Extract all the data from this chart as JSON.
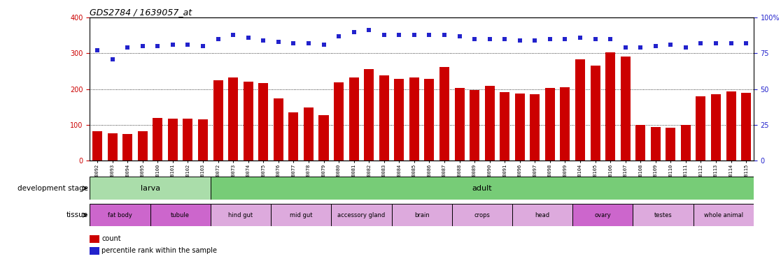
{
  "title": "GDS2784 / 1639057_at",
  "samples": [
    "GSM188092",
    "GSM188093",
    "GSM188094",
    "GSM188095",
    "GSM188100",
    "GSM188101",
    "GSM188102",
    "GSM188103",
    "GSM188072",
    "GSM188073",
    "GSM188074",
    "GSM188075",
    "GSM188076",
    "GSM188077",
    "GSM188078",
    "GSM188079",
    "GSM188080",
    "GSM188081",
    "GSM188082",
    "GSM188083",
    "GSM188084",
    "GSM188085",
    "GSM188086",
    "GSM188087",
    "GSM188088",
    "GSM188089",
    "GSM188090",
    "GSM188091",
    "GSM188096",
    "GSM188097",
    "GSM188098",
    "GSM188099",
    "GSM188104",
    "GSM188105",
    "GSM188106",
    "GSM188107",
    "GSM188108",
    "GSM188109",
    "GSM188110",
    "GSM188111",
    "GSM188112",
    "GSM188113",
    "GSM188114",
    "GSM188115"
  ],
  "counts": [
    83,
    76,
    75,
    83,
    120,
    117,
    117,
    115,
    225,
    232,
    220,
    217,
    175,
    135,
    148,
    128,
    218,
    232,
    255,
    238,
    228,
    232,
    228,
    262,
    204,
    198,
    210,
    192,
    188,
    186,
    204,
    205,
    283,
    265,
    303,
    290,
    100,
    95,
    93,
    100,
    180,
    185,
    193,
    190
  ],
  "percentiles_pct": [
    77,
    71,
    79,
    80,
    80,
    81,
    81,
    80,
    85,
    88,
    86,
    84,
    83,
    82,
    82,
    81,
    87,
    90,
    91,
    88,
    88,
    88,
    88,
    88,
    87,
    85,
    85,
    85,
    84,
    84,
    85,
    85,
    86,
    85,
    85,
    79,
    79,
    80,
    81,
    79,
    82,
    82,
    82,
    82
  ],
  "bar_color": "#cc0000",
  "dot_color": "#2222cc",
  "ylim_left": [
    0,
    400
  ],
  "ylim_right": [
    0,
    100
  ],
  "yticks_left": [
    0,
    100,
    200,
    300,
    400
  ],
  "yticks_right": [
    0,
    25,
    50,
    75,
    100
  ],
  "development_stages": [
    {
      "label": "larva",
      "start": 0,
      "end": 8,
      "color": "#aaddaa"
    },
    {
      "label": "adult",
      "start": 8,
      "end": 44,
      "color": "#77cc77"
    }
  ],
  "tissues": [
    {
      "label": "fat body",
      "start": 0,
      "end": 4,
      "color": "#cc66cc"
    },
    {
      "label": "tubule",
      "start": 4,
      "end": 8,
      "color": "#cc66cc"
    },
    {
      "label": "hind gut",
      "start": 8,
      "end": 12,
      "color": "#ddaadd"
    },
    {
      "label": "mid gut",
      "start": 12,
      "end": 16,
      "color": "#ddaadd"
    },
    {
      "label": "accessory gland",
      "start": 16,
      "end": 20,
      "color": "#ddaadd"
    },
    {
      "label": "brain",
      "start": 20,
      "end": 24,
      "color": "#ddaadd"
    },
    {
      "label": "crops",
      "start": 24,
      "end": 28,
      "color": "#ddaadd"
    },
    {
      "label": "head",
      "start": 28,
      "end": 32,
      "color": "#ddaadd"
    },
    {
      "label": "ovary",
      "start": 32,
      "end": 36,
      "color": "#cc66cc"
    },
    {
      "label": "testes",
      "start": 36,
      "end": 40,
      "color": "#ddaadd"
    },
    {
      "label": "whole animal",
      "start": 40,
      "end": 44,
      "color": "#ddaadd"
    }
  ],
  "bg_color": "#ffffff",
  "plot_bg": "#ffffff"
}
